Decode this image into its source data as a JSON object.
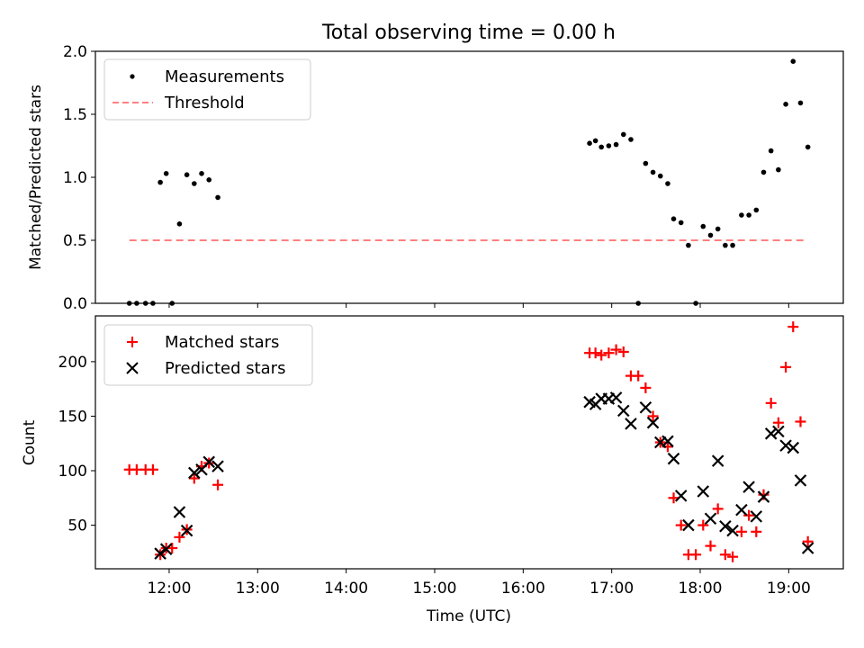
{
  "chart_data": [
    {
      "type": "scatter",
      "title": "Total observing time = 0.00 h",
      "xlabel": "",
      "ylabel": "Matched/Predicted stars",
      "ylim": [
        0,
        2.0
      ],
      "yticks": [
        "0.0",
        "0.5",
        "1.0",
        "1.5",
        "2.0"
      ],
      "legend_position": "upper-left",
      "series": [
        {
          "name": "Measurements",
          "kind": "point",
          "color": "#000000",
          "points": [
            {
              "x": "11:33",
              "y": 0.0
            },
            {
              "x": "11:38",
              "y": 0.0
            },
            {
              "x": "11:44",
              "y": 0.0
            },
            {
              "x": "11:49",
              "y": 0.0
            },
            {
              "x": "11:54",
              "y": 0.96
            },
            {
              "x": "11:58",
              "y": 1.03
            },
            {
              "x": "12:02",
              "y": 0.0
            },
            {
              "x": "12:07",
              "y": 0.63
            },
            {
              "x": "12:12",
              "y": 1.02
            },
            {
              "x": "12:17",
              "y": 0.95
            },
            {
              "x": "12:22",
              "y": 1.03
            },
            {
              "x": "12:27",
              "y": 0.98
            },
            {
              "x": "12:33",
              "y": 0.84
            },
            {
              "x": "16:45",
              "y": 1.27
            },
            {
              "x": "16:49",
              "y": 1.29
            },
            {
              "x": "16:53",
              "y": 1.24
            },
            {
              "x": "16:58",
              "y": 1.25
            },
            {
              "x": "17:03",
              "y": 1.26
            },
            {
              "x": "17:08",
              "y": 1.34
            },
            {
              "x": "17:13",
              "y": 1.3
            },
            {
              "x": "17:18",
              "y": 0.0
            },
            {
              "x": "17:23",
              "y": 1.11
            },
            {
              "x": "17:28",
              "y": 1.04
            },
            {
              "x": "17:33",
              "y": 1.01
            },
            {
              "x": "17:38",
              "y": 0.95
            },
            {
              "x": "17:42",
              "y": 0.67
            },
            {
              "x": "17:47",
              "y": 0.64
            },
            {
              "x": "17:52",
              "y": 0.46
            },
            {
              "x": "17:57",
              "y": 0.0
            },
            {
              "x": "18:02",
              "y": 0.61
            },
            {
              "x": "18:07",
              "y": 0.54
            },
            {
              "x": "18:12",
              "y": 0.59
            },
            {
              "x": "18:17",
              "y": 0.46
            },
            {
              "x": "18:22",
              "y": 0.46
            },
            {
              "x": "18:28",
              "y": 0.7
            },
            {
              "x": "18:33",
              "y": 0.7
            },
            {
              "x": "18:38",
              "y": 0.74
            },
            {
              "x": "18:43",
              "y": 1.04
            },
            {
              "x": "18:48",
              "y": 1.21
            },
            {
              "x": "18:53",
              "y": 1.06
            },
            {
              "x": "18:58",
              "y": 1.58
            },
            {
              "x": "19:03",
              "y": 1.92
            },
            {
              "x": "19:08",
              "y": 1.59
            },
            {
              "x": "19:13",
              "y": 1.24
            }
          ]
        },
        {
          "name": "Threshold",
          "kind": "dashed-line",
          "color": "#ff8080",
          "points": [
            {
              "x": "11:33",
              "y": 0.5
            },
            {
              "x": "19:13",
              "y": 0.5
            }
          ]
        }
      ]
    },
    {
      "type": "scatter",
      "title": "",
      "xlabel": "Time (UTC)",
      "ylabel": "Count",
      "ylim": [
        10,
        242
      ],
      "yticks": [
        "50",
        "100",
        "150",
        "200"
      ],
      "xticks": [
        "12:00",
        "13:00",
        "14:00",
        "15:00",
        "16:00",
        "17:00",
        "18:00",
        "19:00"
      ],
      "xlim": [
        "11:10",
        "19:37"
      ],
      "legend_position": "upper-left",
      "series": [
        {
          "name": "Matched stars",
          "kind": "plus",
          "color": "#ff0000",
          "points": [
            {
              "x": "11:33",
              "y": 101
            },
            {
              "x": "11:38",
              "y": 101
            },
            {
              "x": "11:44",
              "y": 101
            },
            {
              "x": "11:49",
              "y": 101
            },
            {
              "x": "11:54",
              "y": 23
            },
            {
              "x": "11:58",
              "y": 29
            },
            {
              "x": "12:02",
              "y": 29
            },
            {
              "x": "12:07",
              "y": 39
            },
            {
              "x": "12:12",
              "y": 46
            },
            {
              "x": "12:17",
              "y": 93
            },
            {
              "x": "12:22",
              "y": 104
            },
            {
              "x": "12:27",
              "y": 107
            },
            {
              "x": "12:33",
              "y": 87
            },
            {
              "x": "16:45",
              "y": 208
            },
            {
              "x": "16:49",
              "y": 208
            },
            {
              "x": "16:53",
              "y": 206
            },
            {
              "x": "16:58",
              "y": 208
            },
            {
              "x": "17:03",
              "y": 211
            },
            {
              "x": "17:08",
              "y": 209
            },
            {
              "x": "17:13",
              "y": 187
            },
            {
              "x": "17:18",
              "y": 187
            },
            {
              "x": "17:23",
              "y": 176
            },
            {
              "x": "17:28",
              "y": 150
            },
            {
              "x": "17:33",
              "y": 126
            },
            {
              "x": "17:38",
              "y": 122
            },
            {
              "x": "17:42",
              "y": 75
            },
            {
              "x": "17:47",
              "y": 50
            },
            {
              "x": "17:52",
              "y": 23
            },
            {
              "x": "17:57",
              "y": 23
            },
            {
              "x": "18:02",
              "y": 50
            },
            {
              "x": "18:07",
              "y": 31
            },
            {
              "x": "18:12",
              "y": 65
            },
            {
              "x": "18:17",
              "y": 23
            },
            {
              "x": "18:22",
              "y": 21
            },
            {
              "x": "18:28",
              "y": 44
            },
            {
              "x": "18:33",
              "y": 59
            },
            {
              "x": "18:38",
              "y": 44
            },
            {
              "x": "18:43",
              "y": 78
            },
            {
              "x": "18:48",
              "y": 162
            },
            {
              "x": "18:53",
              "y": 144
            },
            {
              "x": "18:58",
              "y": 195
            },
            {
              "x": "19:03",
              "y": 232
            },
            {
              "x": "19:08",
              "y": 145
            },
            {
              "x": "19:13",
              "y": 35
            }
          ]
        },
        {
          "name": "Predicted stars",
          "kind": "cross",
          "color": "#000000",
          "points": [
            {
              "x": "11:54",
              "y": 24
            },
            {
              "x": "11:58",
              "y": 28
            },
            {
              "x": "12:07",
              "y": 62
            },
            {
              "x": "12:12",
              "y": 45
            },
            {
              "x": "12:17",
              "y": 98
            },
            {
              "x": "12:22",
              "y": 101
            },
            {
              "x": "12:27",
              "y": 108
            },
            {
              "x": "12:33",
              "y": 104
            },
            {
              "x": "16:45",
              "y": 163
            },
            {
              "x": "16:49",
              "y": 161
            },
            {
              "x": "16:53",
              "y": 166
            },
            {
              "x": "16:58",
              "y": 166
            },
            {
              "x": "17:03",
              "y": 167
            },
            {
              "x": "17:08",
              "y": 155
            },
            {
              "x": "17:13",
              "y": 143
            },
            {
              "x": "17:23",
              "y": 158
            },
            {
              "x": "17:28",
              "y": 144
            },
            {
              "x": "17:33",
              "y": 126
            },
            {
              "x": "17:38",
              "y": 127
            },
            {
              "x": "17:42",
              "y": 111
            },
            {
              "x": "17:47",
              "y": 77
            },
            {
              "x": "17:52",
              "y": 50
            },
            {
              "x": "18:02",
              "y": 81
            },
            {
              "x": "18:07",
              "y": 56
            },
            {
              "x": "18:12",
              "y": 109
            },
            {
              "x": "18:17",
              "y": 49
            },
            {
              "x": "18:22",
              "y": 45
            },
            {
              "x": "18:28",
              "y": 64
            },
            {
              "x": "18:33",
              "y": 85
            },
            {
              "x": "18:38",
              "y": 58
            },
            {
              "x": "18:43",
              "y": 76
            },
            {
              "x": "18:48",
              "y": 134
            },
            {
              "x": "18:53",
              "y": 136
            },
            {
              "x": "18:58",
              "y": 123
            },
            {
              "x": "19:03",
              "y": 121
            },
            {
              "x": "19:08",
              "y": 91
            },
            {
              "x": "19:13",
              "y": 29
            }
          ]
        }
      ]
    }
  ]
}
